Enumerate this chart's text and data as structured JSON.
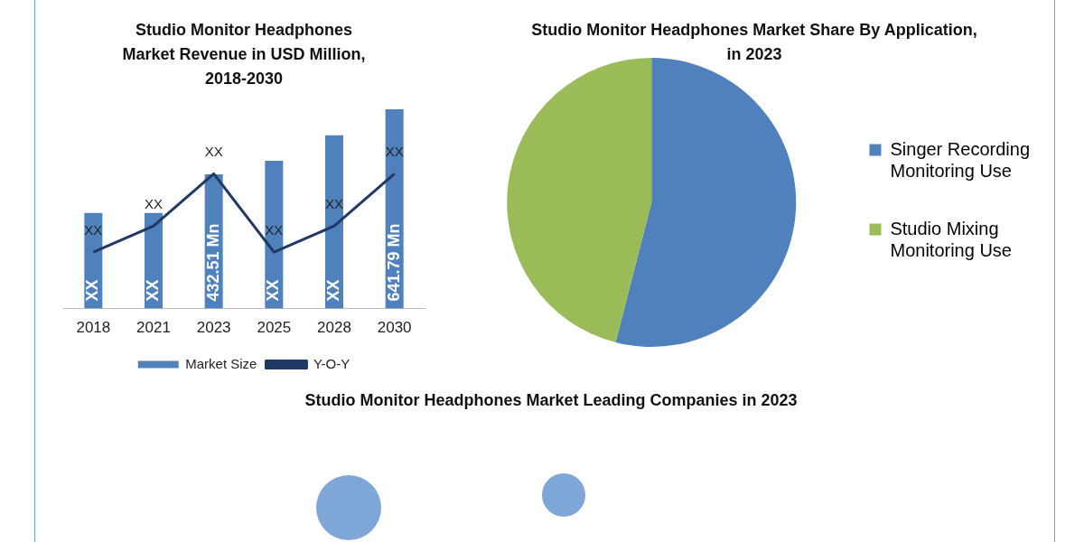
{
  "chart_data": [
    {
      "type": "bar",
      "title": "Studio Monitor Headphones Market Revenue in USD Million, 2018-2030",
      "categories": [
        "2018",
        "2021",
        "2023",
        "2025",
        "2028",
        "2030"
      ],
      "legend": "bottom",
      "grid": false,
      "tick_labels": "x",
      "series": [
        {
          "name": "Market Size",
          "type": "bar",
          "color": "#4f81bd",
          "values": [
            308,
            308,
            432.51,
            476,
            558,
            641.79
          ],
          "value_labels": [
            "XX",
            "XX",
            "432.51 Mn",
            "XX",
            "XX",
            "641.79 Mn"
          ]
        },
        {
          "name": "Y-O-Y",
          "type": "line",
          "color": "#1f3864",
          "values": [
            182,
            266,
            434,
            182,
            266,
            434
          ],
          "value_labels": [
            "XX",
            "XX",
            "XX",
            "XX",
            "XX",
            "XX"
          ]
        }
      ]
    },
    {
      "type": "pie",
      "title": "Studio Monitor Headphones Market Share By Application, in 2023",
      "categories": [
        "Singer Recording Monitoring Use",
        "Studio Mixing Monitoring Use"
      ],
      "values": [
        54,
        46
      ],
      "colors": [
        "#4f81bd",
        "#9bbb59"
      ],
      "legend": "right"
    },
    {
      "type": "other",
      "title": "Studio Monitor Headphones Market Leading Companies in 2023"
    }
  ]
}
